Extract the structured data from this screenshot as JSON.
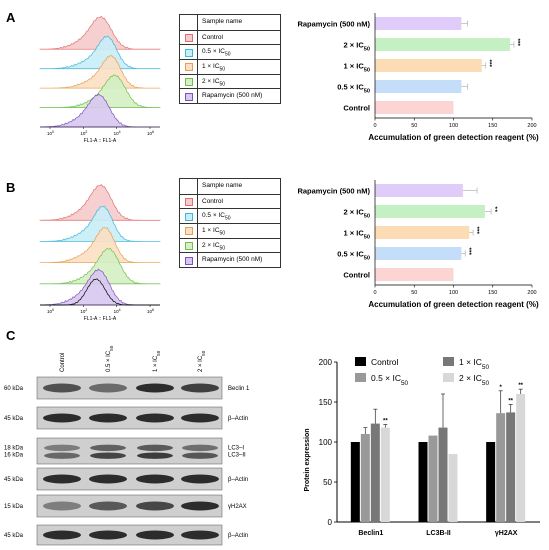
{
  "panels": {
    "a": {
      "letter": "A",
      "axis_label": "FL1-A :: FL1-A"
    },
    "b": {
      "letter": "B",
      "axis_label": "FL1-A :: FL1-A"
    },
    "c": {
      "letter": "C"
    }
  },
  "flow_legend": {
    "header": "Sample name",
    "items": [
      {
        "label": "Control",
        "color": "#e07070",
        "fill": "#f6cccc"
      },
      {
        "label": "0.5 × IC50",
        "color": "#40b8d8",
        "fill": "#c8eef8"
      },
      {
        "label": "1 × IC50",
        "color": "#e8a050",
        "fill": "#fae0c4"
      },
      {
        "label": "2 × IC50",
        "color": "#70c050",
        "fill": "#d4f0c4"
      },
      {
        "label": "Rapamycin (500 nM)",
        "color": "#8050c0",
        "fill": "#d8c8f0"
      }
    ]
  },
  "flow_ticks": [
    "10",
    "10",
    "10",
    "10"
  ],
  "flow_tick_exps": [
    "0",
    "2",
    "4",
    "6"
  ],
  "wb": {
    "lanes": [
      "Control",
      "0.5 × IC50",
      "1 × IC50",
      "2 × IC50"
    ],
    "blots": [
      {
        "left_label": "60 kDa",
        "right_label": "Beclin 1"
      },
      {
        "left_label": "45 kDa",
        "right_label": "β–Actin"
      },
      {
        "left_label": "18 kDa\n16 kDa",
        "right_label": "LC3–I\nLC3–II"
      },
      {
        "left_label": "45 kDa",
        "right_label": "β–Actin"
      },
      {
        "left_label": "15 kDa",
        "right_label": "γH2AX"
      },
      {
        "left_label": "45 kDa",
        "right_label": "β–Actin"
      }
    ]
  },
  "chart_data": [
    {
      "type": "bar",
      "orientation": "horizontal",
      "categories": [
        "Rapamycin (500 nM)",
        "2 × IC50",
        "1 × IC50",
        "0.5 × IC50",
        "Control"
      ],
      "values": [
        110,
        172,
        136,
        110,
        100
      ],
      "errors": [
        8,
        5,
        5,
        8,
        0
      ],
      "significance": [
        "",
        "***",
        "***",
        "",
        ""
      ],
      "colors": [
        "#e0ccf8",
        "#c4f0c4",
        "#fcdcb4",
        "#c4ddf8",
        "#fcd4d4"
      ],
      "xlabel": "Accumulation of green detection reagent (%)",
      "xlim": [
        0,
        200
      ],
      "xticks": [
        0,
        50,
        100,
        150,
        200
      ]
    },
    {
      "type": "bar",
      "orientation": "horizontal",
      "categories": [
        "Rapamycin (500 nM)",
        "2 × IC50",
        "1 × IC50",
        "0.5 × IC50",
        "Control"
      ],
      "values": [
        112,
        140,
        120,
        110,
        100
      ],
      "errors": [
        18,
        8,
        5,
        5,
        0
      ],
      "significance": [
        "",
        "**",
        "***",
        "***",
        ""
      ],
      "colors": [
        "#e0ccf8",
        "#c4f0c4",
        "#fcdcb4",
        "#c4ddf8",
        "#fcd4d4"
      ],
      "xlabel": "Accumulation of green detection reagent (%)",
      "xlim": [
        0,
        200
      ],
      "xticks": [
        0,
        50,
        100,
        150,
        200
      ]
    },
    {
      "type": "bar",
      "categories": [
        "Beclin1",
        "LC3B-II",
        "γH2AX"
      ],
      "series": [
        {
          "name": "Control",
          "values": [
            100,
            100,
            100
          ],
          "errors": [
            0,
            0,
            0
          ],
          "sig": [
            "",
            "",
            ""
          ],
          "color": "#000000"
        },
        {
          "name": "0.5 × IC50",
          "values": [
            110,
            108,
            136
          ],
          "errors": [
            8,
            0,
            28
          ],
          "sig": [
            "",
            "",
            "*"
          ],
          "color": "#999999"
        },
        {
          "name": "1 × IC50",
          "values": [
            123,
            118,
            137
          ],
          "errors": [
            18,
            42,
            10
          ],
          "sig": [
            "",
            "",
            "**"
          ],
          "color": "#777777"
        },
        {
          "name": "2 × IC50",
          "values": [
            118,
            85,
            160
          ],
          "errors": [
            4,
            0,
            6
          ],
          "sig": [
            "**",
            "",
            "**"
          ],
          "color": "#d8d8d8"
        }
      ],
      "ylabel": "Protein expression",
      "ylim": [
        0,
        200
      ],
      "yticks": [
        0,
        50,
        100,
        150,
        200
      ]
    }
  ]
}
